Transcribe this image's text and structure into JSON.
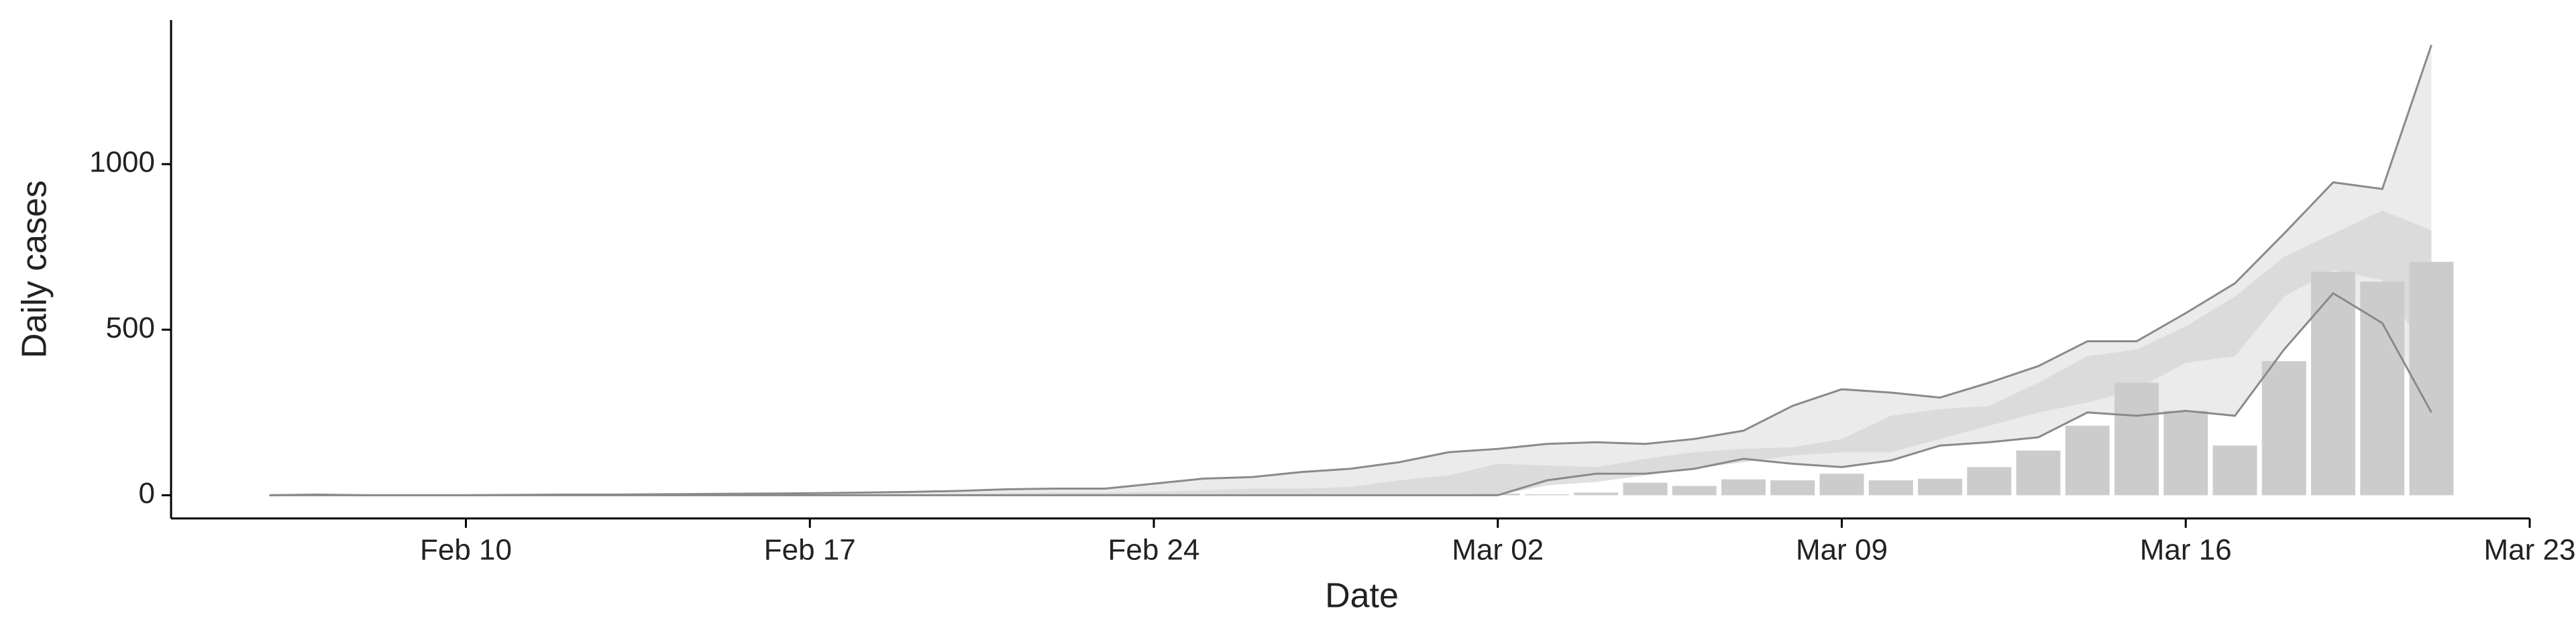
{
  "chart_data": {
    "type": "bar-band",
    "x_label": "Date",
    "y_label": "Daily cases",
    "x": [
      "Feb 06",
      "Feb 07",
      "Feb 08",
      "Feb 09",
      "Feb 10",
      "Feb 11",
      "Feb 12",
      "Feb 13",
      "Feb 14",
      "Feb 15",
      "Feb 16",
      "Feb 17",
      "Feb 18",
      "Feb 19",
      "Feb 20",
      "Feb 21",
      "Feb 22",
      "Feb 23",
      "Feb 24",
      "Feb 25",
      "Feb 26",
      "Feb 27",
      "Feb 28",
      "Feb 29",
      "Mar 01",
      "Mar 02",
      "Mar 03",
      "Mar 04",
      "Mar 05",
      "Mar 06",
      "Mar 07",
      "Mar 08",
      "Mar 09",
      "Mar 10",
      "Mar 11",
      "Mar 12",
      "Mar 13",
      "Mar 14",
      "Mar 15",
      "Mar 16",
      "Mar 17",
      "Mar 18",
      "Mar 19",
      "Mar 20",
      "Mar 21"
    ],
    "bars": {
      "color": "#cccccc",
      "values": [
        null,
        null,
        null,
        null,
        null,
        null,
        null,
        null,
        null,
        null,
        null,
        null,
        null,
        null,
        null,
        null,
        null,
        null,
        null,
        null,
        null,
        null,
        null,
        null,
        null,
        5,
        3,
        8,
        38,
        28,
        48,
        45,
        65,
        45,
        50,
        85,
        135,
        210,
        340,
        255,
        150,
        405,
        675,
        645,
        705
      ]
    },
    "bands": [
      {
        "color": "#ebebeb",
        "line_color": "#8a8a8a",
        "lower": [
          0,
          0,
          0,
          0,
          0,
          0,
          0,
          0,
          0,
          0,
          0,
          0,
          0,
          0,
          0,
          0,
          0,
          0,
          0,
          0,
          0,
          0,
          0,
          0,
          0,
          0,
          45,
          65,
          65,
          80,
          110,
          95,
          85,
          105,
          150,
          160,
          175,
          250,
          240,
          255,
          240,
          440,
          610,
          520,
          250
        ],
        "upper": [
          0,
          2,
          0,
          0,
          0,
          1,
          2,
          2,
          3,
          4,
          5,
          6,
          8,
          10,
          13,
          18,
          20,
          20,
          35,
          50,
          55,
          70,
          80,
          100,
          130,
          140,
          155,
          160,
          155,
          170,
          195,
          270,
          320,
          310,
          295,
          340,
          390,
          465,
          465,
          550,
          640,
          790,
          945,
          925,
          1360
        ]
      },
      {
        "color": "#d6d6d6",
        "lower": [
          0,
          0,
          0,
          0,
          0,
          0,
          0,
          0,
          0,
          0,
          0,
          0,
          0,
          0,
          0,
          0,
          0,
          0,
          0,
          0,
          0,
          0,
          0,
          0,
          0,
          0,
          30,
          40,
          60,
          80,
          100,
          120,
          130,
          130,
          170,
          210,
          250,
          280,
          320,
          400,
          420,
          600,
          680,
          650,
          400
        ],
        "upper": [
          0,
          0,
          0,
          0,
          0,
          0,
          0,
          0,
          0,
          0,
          0,
          0,
          1,
          2,
          4,
          6,
          8,
          8,
          10,
          15,
          20,
          20,
          25,
          45,
          60,
          95,
          90,
          85,
          110,
          130,
          140,
          145,
          170,
          240,
          260,
          270,
          340,
          420,
          440,
          510,
          600,
          720,
          790,
          860,
          800
        ]
      }
    ],
    "xlim": [
      "Feb 04",
      "Mar 23"
    ],
    "xticks": [
      "Feb 10",
      "Feb 17",
      "Feb 24",
      "Mar 02",
      "Mar 09",
      "Mar 16",
      "Mar 23"
    ],
    "ylim": [
      -70,
      1435
    ],
    "yticks": [
      0,
      500,
      1000
    ]
  }
}
